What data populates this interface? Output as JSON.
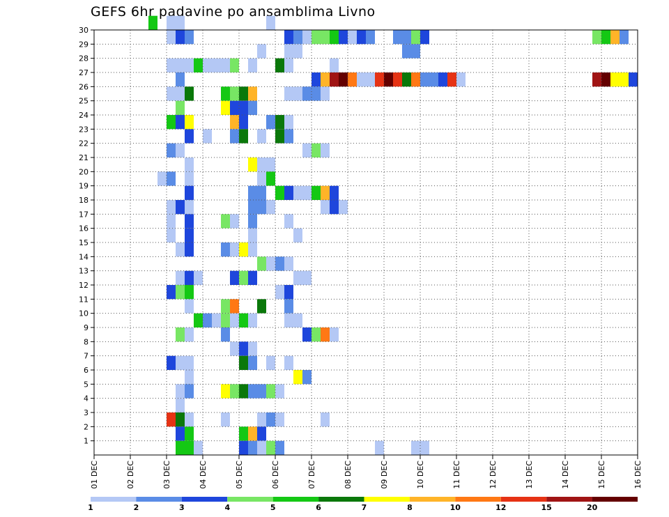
{
  "chart_data": {
    "type": "heatmap",
    "title": "GEFS 6hr padavine po ansamblima Livno",
    "xlabel": "",
    "ylabel": "",
    "x_ticks": [
      "01 DEC",
      "02 DEC",
      "03 DEC",
      "04 DEC",
      "05 DEC",
      "06 DEC",
      "07 DEC",
      "08 DEC",
      "09 DEC",
      "10 DEC",
      "11 DEC",
      "12 DEC",
      "13 DEC",
      "14 DEC",
      "15 DEC",
      "16 DEC"
    ],
    "xlim": [
      0,
      60
    ],
    "x_step": "6hr",
    "y_ticks": [
      1,
      2,
      3,
      4,
      5,
      6,
      7,
      8,
      9,
      10,
      11,
      12,
      13,
      14,
      15,
      16,
      17,
      18,
      19,
      20,
      21,
      22,
      23,
      24,
      25,
      26,
      27,
      28,
      29,
      30
    ],
    "ylim": [
      0,
      30
    ],
    "colorbar": {
      "labels": [
        "1",
        "2",
        "3",
        "4",
        "5",
        "6",
        "7",
        "8",
        "10",
        "12",
        "15",
        "20"
      ],
      "colors": [
        "#b4c8f5",
        "#5a8ce6",
        "#1e46dc",
        "#78e664",
        "#14c814",
        "#0a780a",
        "#ffff00",
        "#ffb428",
        "#ff7814",
        "#e63214",
        "#a01414",
        "#640000"
      ]
    },
    "cells": [
      [
        8,
        30,
        0
      ],
      [
        9,
        30,
        0
      ],
      [
        6,
        30,
        4
      ],
      [
        19,
        30,
        0
      ],
      [
        33,
        29,
        1
      ],
      [
        34,
        29,
        1
      ],
      [
        35,
        29,
        3
      ],
      [
        36,
        29,
        2
      ],
      [
        8,
        29,
        0
      ],
      [
        9,
        29,
        2
      ],
      [
        10,
        29,
        1
      ],
      [
        21,
        29,
        2
      ],
      [
        22,
        29,
        1
      ],
      [
        23,
        29,
        0
      ],
      [
        24,
        29,
        3
      ],
      [
        25,
        29,
        3
      ],
      [
        26,
        29,
        4
      ],
      [
        27,
        29,
        2
      ],
      [
        28,
        29,
        0
      ],
      [
        29,
        29,
        2
      ],
      [
        30,
        29,
        1
      ],
      [
        18,
        28,
        0
      ],
      [
        21,
        28,
        0
      ],
      [
        22,
        28,
        0
      ],
      [
        34,
        28,
        1
      ],
      [
        35,
        28,
        1
      ],
      [
        8,
        27,
        0
      ],
      [
        9,
        27,
        0
      ],
      [
        10,
        27,
        0
      ],
      [
        11,
        27,
        4
      ],
      [
        12,
        27,
        0
      ],
      [
        13,
        27,
        0
      ],
      [
        14,
        27,
        0
      ],
      [
        15,
        27,
        3
      ],
      [
        17,
        27,
        0
      ],
      [
        20,
        27,
        5
      ],
      [
        21,
        27,
        0
      ],
      [
        26,
        27,
        0
      ],
      [
        9,
        26,
        1
      ],
      [
        24,
        26,
        2
      ],
      [
        25,
        26,
        7
      ],
      [
        26,
        26,
        10
      ],
      [
        27,
        26,
        11
      ],
      [
        28,
        26,
        8
      ],
      [
        29,
        26,
        0
      ],
      [
        30,
        26,
        0
      ],
      [
        31,
        26,
        9
      ],
      [
        32,
        26,
        11
      ],
      [
        33,
        26,
        9
      ],
      [
        34,
        26,
        5
      ],
      [
        35,
        26,
        8
      ],
      [
        36,
        26,
        1
      ],
      [
        37,
        26,
        1
      ],
      [
        38,
        26,
        2
      ],
      [
        39,
        26,
        9
      ],
      [
        40,
        26,
        0
      ],
      [
        8,
        25,
        0
      ],
      [
        9,
        25,
        0
      ],
      [
        10,
        25,
        5
      ],
      [
        14,
        25,
        4
      ],
      [
        15,
        25,
        3
      ],
      [
        16,
        25,
        5
      ],
      [
        17,
        25,
        7
      ],
      [
        21,
        25,
        0
      ],
      [
        22,
        25,
        0
      ],
      [
        23,
        25,
        1
      ],
      [
        24,
        25,
        1
      ],
      [
        25,
        25,
        0
      ],
      [
        9,
        24,
        3
      ],
      [
        14,
        24,
        6
      ],
      [
        15,
        24,
        2
      ],
      [
        16,
        24,
        2
      ],
      [
        17,
        24,
        1
      ],
      [
        8,
        23,
        4
      ],
      [
        9,
        23,
        2
      ],
      [
        10,
        23,
        6
      ],
      [
        15,
        23,
        7
      ],
      [
        16,
        23,
        2
      ],
      [
        19,
        23,
        1
      ],
      [
        20,
        23,
        5
      ],
      [
        21,
        23,
        0
      ],
      [
        10,
        22,
        2
      ],
      [
        12,
        22,
        0
      ],
      [
        15,
        22,
        1
      ],
      [
        16,
        22,
        5
      ],
      [
        18,
        22,
        0
      ],
      [
        20,
        22,
        5
      ],
      [
        21,
        22,
        1
      ],
      [
        8,
        21,
        1
      ],
      [
        9,
        21,
        0
      ],
      [
        23,
        21,
        0
      ],
      [
        24,
        21,
        3
      ],
      [
        25,
        21,
        0
      ],
      [
        10,
        20,
        0
      ],
      [
        17,
        20,
        6
      ],
      [
        18,
        20,
        0
      ],
      [
        19,
        20,
        0
      ],
      [
        7,
        19,
        0
      ],
      [
        8,
        19,
        1
      ],
      [
        10,
        19,
        0
      ],
      [
        18,
        19,
        0
      ],
      [
        19,
        19,
        4
      ],
      [
        10,
        18,
        2
      ],
      [
        17,
        18,
        1
      ],
      [
        18,
        18,
        1
      ],
      [
        20,
        18,
        4
      ],
      [
        21,
        18,
        2
      ],
      [
        22,
        18,
        0
      ],
      [
        23,
        18,
        0
      ],
      [
        24,
        18,
        4
      ],
      [
        25,
        18,
        7
      ],
      [
        26,
        18,
        2
      ],
      [
        8,
        17,
        0
      ],
      [
        9,
        17,
        2
      ],
      [
        10,
        17,
        0
      ],
      [
        17,
        17,
        1
      ],
      [
        18,
        17,
        1
      ],
      [
        19,
        17,
        0
      ],
      [
        25,
        17,
        0
      ],
      [
        26,
        17,
        2
      ],
      [
        27,
        17,
        0
      ],
      [
        8,
        16,
        0
      ],
      [
        10,
        16,
        2
      ],
      [
        14,
        16,
        3
      ],
      [
        15,
        16,
        0
      ],
      [
        17,
        16,
        1
      ],
      [
        21,
        16,
        0
      ],
      [
        8,
        15,
        0
      ],
      [
        10,
        15,
        2
      ],
      [
        17,
        15,
        0
      ],
      [
        22,
        15,
        0
      ],
      [
        9,
        14,
        0
      ],
      [
        10,
        14,
        2
      ],
      [
        14,
        14,
        1
      ],
      [
        15,
        14,
        0
      ],
      [
        16,
        14,
        6
      ],
      [
        17,
        14,
        0
      ],
      [
        18,
        13,
        3
      ],
      [
        19,
        13,
        0
      ],
      [
        20,
        13,
        1
      ],
      [
        21,
        13,
        0
      ],
      [
        9,
        12,
        0
      ],
      [
        10,
        12,
        2
      ],
      [
        11,
        12,
        0
      ],
      [
        15,
        12,
        2
      ],
      [
        16,
        12,
        3
      ],
      [
        17,
        12,
        2
      ],
      [
        22,
        12,
        0
      ],
      [
        23,
        12,
        0
      ],
      [
        8,
        11,
        2
      ],
      [
        9,
        11,
        3
      ],
      [
        10,
        11,
        4
      ],
      [
        20,
        11,
        0
      ],
      [
        21,
        11,
        2
      ],
      [
        10,
        10,
        0
      ],
      [
        14,
        10,
        3
      ],
      [
        15,
        10,
        8
      ],
      [
        18,
        10,
        5
      ],
      [
        21,
        10,
        1
      ],
      [
        11,
        9,
        4
      ],
      [
        12,
        9,
        1
      ],
      [
        13,
        9,
        0
      ],
      [
        14,
        9,
        3
      ],
      [
        15,
        9,
        0
      ],
      [
        16,
        9,
        4
      ],
      [
        17,
        9,
        0
      ],
      [
        21,
        9,
        0
      ],
      [
        22,
        9,
        0
      ],
      [
        9,
        8,
        3
      ],
      [
        10,
        8,
        0
      ],
      [
        14,
        8,
        1
      ],
      [
        23,
        8,
        2
      ],
      [
        24,
        8,
        3
      ],
      [
        25,
        8,
        8
      ],
      [
        26,
        8,
        0
      ],
      [
        15,
        7,
        0
      ],
      [
        16,
        7,
        2
      ],
      [
        17,
        7,
        0
      ],
      [
        8,
        6,
        2
      ],
      [
        9,
        6,
        0
      ],
      [
        10,
        6,
        0
      ],
      [
        16,
        6,
        5
      ],
      [
        17,
        6,
        1
      ],
      [
        19,
        6,
        0
      ],
      [
        21,
        6,
        0
      ],
      [
        10,
        5,
        0
      ],
      [
        22,
        5,
        6
      ],
      [
        23,
        5,
        1
      ],
      [
        9,
        4,
        0
      ],
      [
        10,
        4,
        1
      ],
      [
        14,
        4,
        6
      ],
      [
        15,
        4,
        3
      ],
      [
        16,
        4,
        5
      ],
      [
        17,
        4,
        1
      ],
      [
        18,
        4,
        1
      ],
      [
        19,
        4,
        3
      ],
      [
        20,
        4,
        0
      ],
      [
        9,
        3,
        0
      ],
      [
        8,
        2,
        9
      ],
      [
        9,
        2,
        5
      ],
      [
        10,
        2,
        0
      ],
      [
        14,
        2,
        0
      ],
      [
        18,
        2,
        0
      ],
      [
        19,
        2,
        1
      ],
      [
        20,
        2,
        0
      ],
      [
        25,
        2,
        0
      ],
      [
        9,
        1,
        2
      ],
      [
        10,
        1,
        4
      ],
      [
        16,
        1,
        4
      ],
      [
        17,
        1,
        7
      ],
      [
        18,
        1,
        2
      ],
      [
        9,
        0,
        4
      ],
      [
        10,
        0,
        4
      ],
      [
        11,
        0,
        0
      ],
      [
        16,
        0,
        2
      ],
      [
        17,
        0,
        1
      ],
      [
        18,
        0,
        0
      ],
      [
        19,
        0,
        3
      ],
      [
        20,
        0,
        1
      ],
      [
        31,
        0,
        0
      ],
      [
        35,
        0,
        0
      ],
      [
        36,
        0,
        0
      ]
    ],
    "cells_right": [
      [
        0,
        26,
        10
      ],
      [
        1,
        26,
        11
      ],
      [
        2,
        26,
        6
      ],
      [
        3,
        26,
        6
      ],
      [
        4,
        26,
        2
      ],
      [
        0,
        29,
        3
      ],
      [
        1,
        29,
        4
      ],
      [
        2,
        29,
        7
      ],
      [
        3,
        29,
        1
      ]
    ]
  }
}
